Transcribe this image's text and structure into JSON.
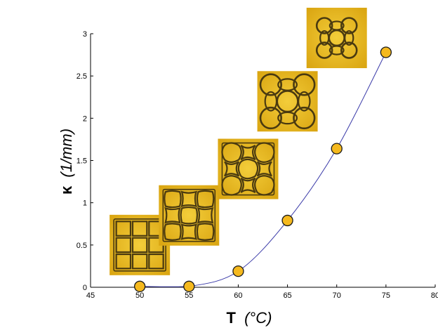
{
  "chart_data": {
    "type": "line",
    "xlabel": {
      "symbol": "T",
      "unit": "(°C)"
    },
    "ylabel": {
      "symbol": "κ",
      "unit": "(1/mm)"
    },
    "xlim": [
      45,
      80
    ],
    "ylim": [
      0,
      3
    ],
    "x_ticks": [
      "45",
      "50",
      "55",
      "60",
      "65",
      "70",
      "75",
      "80"
    ],
    "y_ticks": [
      "0",
      "0.5",
      "1",
      "1.5",
      "2",
      "2.5",
      "3"
    ],
    "series": [
      {
        "x": [
          50,
          55,
          60,
          65,
          70,
          75
        ],
        "y": [
          0.01,
          0.01,
          0.19,
          0.79,
          1.64,
          2.78
        ],
        "line_color": "#3a3aa8",
        "marker_color": "#f5b91e",
        "marker_edge": "#1a1a1a"
      }
    ],
    "insets": [
      {
        "x": 50,
        "y": 0.5,
        "pattern": "square-grid"
      },
      {
        "x": 55,
        "y": 0.85,
        "pattern": "slightly-wavy-grid"
      },
      {
        "x": 61,
        "y": 1.4,
        "pattern": "wavy-grid"
      },
      {
        "x": 65,
        "y": 2.2,
        "pattern": "bowtie-lattice"
      },
      {
        "x": 70,
        "y": 2.95,
        "pattern": "tight-bowtie-lattice"
      }
    ],
    "colors": {
      "inset_background": "#e8b820",
      "inset_lines": "#4a3a10"
    }
  }
}
